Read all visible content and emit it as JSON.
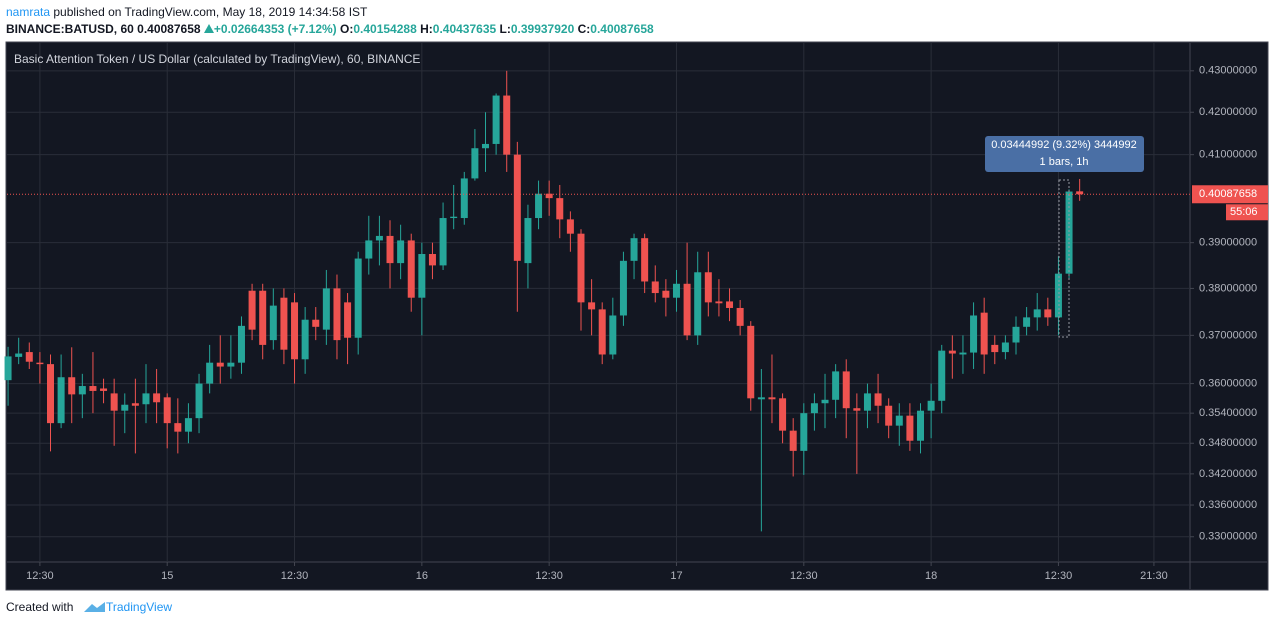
{
  "header": {
    "author": "namrata",
    "published": "published on TradingView.com, May 18, 2019 14:34:58 IST",
    "symbol": "BINANCE:BATUSD, 60",
    "change": "+0.02664353 (+7.12%)",
    "open_label": "O:",
    "high_label": "H:",
    "low_label": "L:",
    "close_label": "C:",
    "low": "0.39937920"
  },
  "chart_data": {
    "type": "candlestick",
    "title": "Basic Attention Token / US Dollar (calculated by TradingView), 60, BINANCE",
    "up_color": "#26a69a",
    "down_color": "#ef5350",
    "log_scale": true,
    "grid": true,
    "open": [
      0.3607,
      0.3655,
      0.3665,
      0.3643,
      0.364,
      0.352,
      0.3613,
      0.3578,
      0.3595,
      0.359,
      0.358,
      0.3545,
      0.356,
      0.3558,
      0.358,
      0.3572,
      0.352,
      0.3503,
      0.353,
      0.36,
      0.3643,
      0.3635,
      0.3643,
      0.3795,
      0.3795,
      0.369,
      0.378,
      0.377,
      0.365,
      0.3733,
      0.3712,
      0.38,
      0.377,
      0.3695,
      0.3865,
      0.3905,
      0.3915,
      0.3855,
      0.3905,
      0.378,
      0.3875,
      0.385,
      0.3955,
      0.3955,
      0.4045,
      0.4115,
      0.4125,
      0.424,
      0.41,
      0.3855,
      0.3955,
      0.401,
      0.4,
      0.3952,
      0.392,
      0.377,
      0.3755,
      0.366,
      0.3742,
      0.386,
      0.391,
      0.3815,
      0.3795,
      0.378,
      0.381,
      0.37,
      0.3835,
      0.3772,
      0.3772,
      0.3758,
      0.372,
      0.3568,
      0.3572,
      0.357,
      0.3505,
      0.3465,
      0.354,
      0.356,
      0.3567,
      0.3625,
      0.355,
      0.3545,
      0.358,
      0.3555,
      0.3515,
      0.3535,
      0.3485,
      0.3545,
      0.3565,
      0.3668,
      0.366,
      0.3664,
      0.3748,
      0.368,
      0.3665,
      0.3685,
      0.3718,
      0.3738,
      0.3755,
      0.3738,
      0.3832,
      0.40154288
    ],
    "high": [
      0.3676,
      0.3695,
      0.3685,
      0.3665,
      0.366,
      0.366,
      0.3675,
      0.362,
      0.3665,
      0.361,
      0.361,
      0.358,
      0.361,
      0.364,
      0.363,
      0.358,
      0.357,
      0.356,
      0.362,
      0.368,
      0.37,
      0.37,
      0.374,
      0.381,
      0.381,
      0.38,
      0.38,
      0.379,
      0.376,
      0.376,
      0.384,
      0.383,
      0.379,
      0.388,
      0.396,
      0.396,
      0.395,
      0.394,
      0.392,
      0.39,
      0.39,
      0.399,
      0.403,
      0.406,
      0.416,
      0.42,
      0.4245,
      0.43,
      0.413,
      0.3985,
      0.404,
      0.404,
      0.403,
      0.397,
      0.393,
      0.382,
      0.377,
      0.378,
      0.388,
      0.392,
      0.392,
      0.385,
      0.382,
      0.384,
      0.39,
      0.388,
      0.388,
      0.382,
      0.38,
      0.3775,
      0.373,
      0.363,
      0.366,
      0.358,
      0.353,
      0.356,
      0.358,
      0.362,
      0.364,
      0.365,
      0.358,
      0.36,
      0.362,
      0.357,
      0.356,
      0.356,
      0.356,
      0.36,
      0.368,
      0.37,
      0.37,
      0.377,
      0.378,
      0.37,
      0.37,
      0.374,
      0.376,
      0.379,
      0.378,
      0.387,
      0.402,
      0.40437635
    ],
    "low": [
      0.3555,
      0.364,
      0.363,
      0.36,
      0.3464,
      0.351,
      0.352,
      0.353,
      0.354,
      0.356,
      0.3475,
      0.35,
      0.346,
      0.352,
      0.352,
      0.347,
      0.346,
      0.348,
      0.35,
      0.358,
      0.36,
      0.361,
      0.362,
      0.369,
      0.365,
      0.367,
      0.364,
      0.36,
      0.362,
      0.369,
      0.368,
      0.365,
      0.364,
      0.366,
      0.383,
      0.385,
      0.38,
      0.382,
      0.375,
      0.37,
      0.382,
      0.384,
      0.393,
      0.394,
      0.404,
      0.406,
      0.41,
      0.406,
      0.375,
      0.38,
      0.393,
      0.396,
      0.391,
      0.388,
      0.371,
      0.37,
      0.364,
      0.365,
      0.372,
      0.382,
      0.379,
      0.377,
      0.374,
      0.375,
      0.369,
      0.368,
      0.374,
      0.374,
      0.373,
      0.37,
      0.3545,
      0.331,
      0.352,
      0.348,
      0.3415,
      0.3418,
      0.3505,
      0.351,
      0.353,
      0.349,
      0.342,
      0.351,
      0.352,
      0.349,
      0.3475,
      0.3465,
      0.346,
      0.349,
      0.354,
      0.361,
      0.362,
      0.363,
      0.362,
      0.364,
      0.365,
      0.366,
      0.37,
      0.371,
      0.372,
      0.37,
      0.382,
      0.3993792
    ],
    "close": [
      0.3656,
      0.3662,
      0.3645,
      0.364,
      0.352,
      0.3613,
      0.3578,
      0.3595,
      0.3585,
      0.3585,
      0.3545,
      0.3557,
      0.3555,
      0.358,
      0.3562,
      0.352,
      0.3503,
      0.353,
      0.36,
      0.3643,
      0.3635,
      0.3643,
      0.372,
      0.3712,
      0.368,
      0.3763,
      0.367,
      0.365,
      0.3733,
      0.3718,
      0.38,
      0.369,
      0.3695,
      0.3865,
      0.3905,
      0.3915,
      0.3855,
      0.3905,
      0.378,
      0.3875,
      0.385,
      0.3955,
      0.3958,
      0.4045,
      0.4115,
      0.4125,
      0.424,
      0.41,
      0.386,
      0.3955,
      0.401,
      0.4,
      0.3952,
      0.392,
      0.377,
      0.3755,
      0.366,
      0.3742,
      0.386,
      0.391,
      0.3815,
      0.379,
      0.378,
      0.381,
      0.37,
      0.3835,
      0.377,
      0.3768,
      0.3758,
      0.372,
      0.357,
      0.3572,
      0.3568,
      0.3505,
      0.3465,
      0.354,
      0.356,
      0.3567,
      0.3625,
      0.355,
      0.3545,
      0.358,
      0.3555,
      0.3515,
      0.3535,
      0.3485,
      0.3545,
      0.3565,
      0.3668,
      0.3662,
      0.3664,
      0.3742,
      0.366,
      0.3665,
      0.3685,
      0.3718,
      0.3738,
      0.3755,
      0.3738,
      0.3832,
      0.4015,
      0.40087658
    ],
    "xlim": [
      -0.1,
      111.4
    ],
    "xticks": [
      {
        "value": 3,
        "label": "12:30"
      },
      {
        "value": 15,
        "label": "15"
      },
      {
        "value": 27,
        "label": "12:30"
      },
      {
        "value": 39,
        "label": "16"
      },
      {
        "value": 51,
        "label": "12:30"
      },
      {
        "value": 63,
        "label": "17"
      },
      {
        "value": 75,
        "label": "12:30"
      },
      {
        "value": 87,
        "label": "18"
      },
      {
        "value": 99,
        "label": "12:30"
      },
      {
        "value": 108,
        "label": "21:30"
      }
    ],
    "ylim": [
      0.3253,
      0.4366
    ],
    "yticks": [
      {
        "value": 0.43,
        "label": "0.43000000"
      },
      {
        "value": 0.42,
        "label": "0.42000000"
      },
      {
        "value": 0.41,
        "label": "0.41000000"
      },
      {
        "value": 0.39,
        "label": "0.39000000"
      },
      {
        "value": 0.38,
        "label": "0.38000000"
      },
      {
        "value": 0.37,
        "label": "0.37000000"
      },
      {
        "value": 0.36,
        "label": "0.36000000"
      },
      {
        "value": 0.354,
        "label": "0.35400000"
      },
      {
        "value": 0.348,
        "label": "0.34800000"
      },
      {
        "value": 0.342,
        "label": "0.34200000"
      },
      {
        "value": 0.336,
        "label": "0.33600000"
      },
      {
        "value": 0.33,
        "label": "0.33000000"
      }
    ],
    "last_price": 0.40087658,
    "last_price_color": "#ef5350",
    "countdown": "55:06",
    "measure": {
      "text": "0.03444992 (9.32%) 3444992",
      "subtext": "1 bars, 1h"
    }
  },
  "footer": {
    "created": "Created with",
    "brand": "TradingView"
  }
}
